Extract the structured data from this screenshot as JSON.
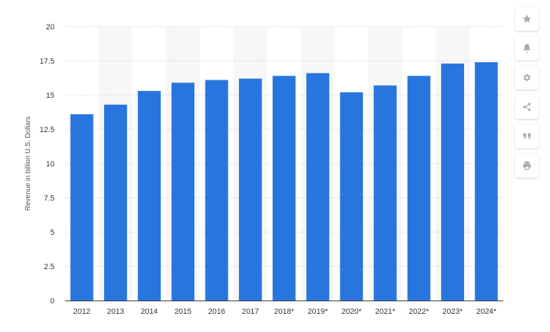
{
  "chart_data": {
    "type": "bar",
    "categories": [
      "2012",
      "2013",
      "2014",
      "2015",
      "2016",
      "2017",
      "2018*",
      "2019*",
      "2020*",
      "2021*",
      "2022*",
      "2023*",
      "2024*"
    ],
    "values": [
      13.6,
      14.3,
      15.3,
      15.9,
      16.1,
      16.2,
      16.4,
      16.6,
      15.2,
      15.7,
      16.4,
      17.3,
      17.4
    ],
    "title": "",
    "xlabel": "",
    "ylabel": "Revenue in billion U.S. Dollars",
    "ylim": [
      0,
      20
    ],
    "yticks": [
      0,
      2.5,
      5,
      7.5,
      10,
      12.5,
      15,
      17.5,
      20
    ],
    "ytick_labels": [
      "0",
      "2.5",
      "5",
      "7.5",
      "10",
      "12.5",
      "15",
      "17.5",
      "20"
    ],
    "grid": true,
    "legend": "none",
    "colors": {
      "bar": "#2876dd",
      "band": "#f7f7f8",
      "grid": "#cfcfcf",
      "axis": "#333333"
    }
  },
  "toolbar": {
    "buttons": [
      {
        "name": "favorite-button",
        "icon": "star-icon"
      },
      {
        "name": "notification-button",
        "icon": "bell-icon"
      },
      {
        "name": "settings-button",
        "icon": "gear-icon"
      },
      {
        "name": "share-button",
        "icon": "share-icon"
      },
      {
        "name": "cite-button",
        "icon": "quote-icon"
      },
      {
        "name": "print-button",
        "icon": "print-icon"
      }
    ]
  }
}
